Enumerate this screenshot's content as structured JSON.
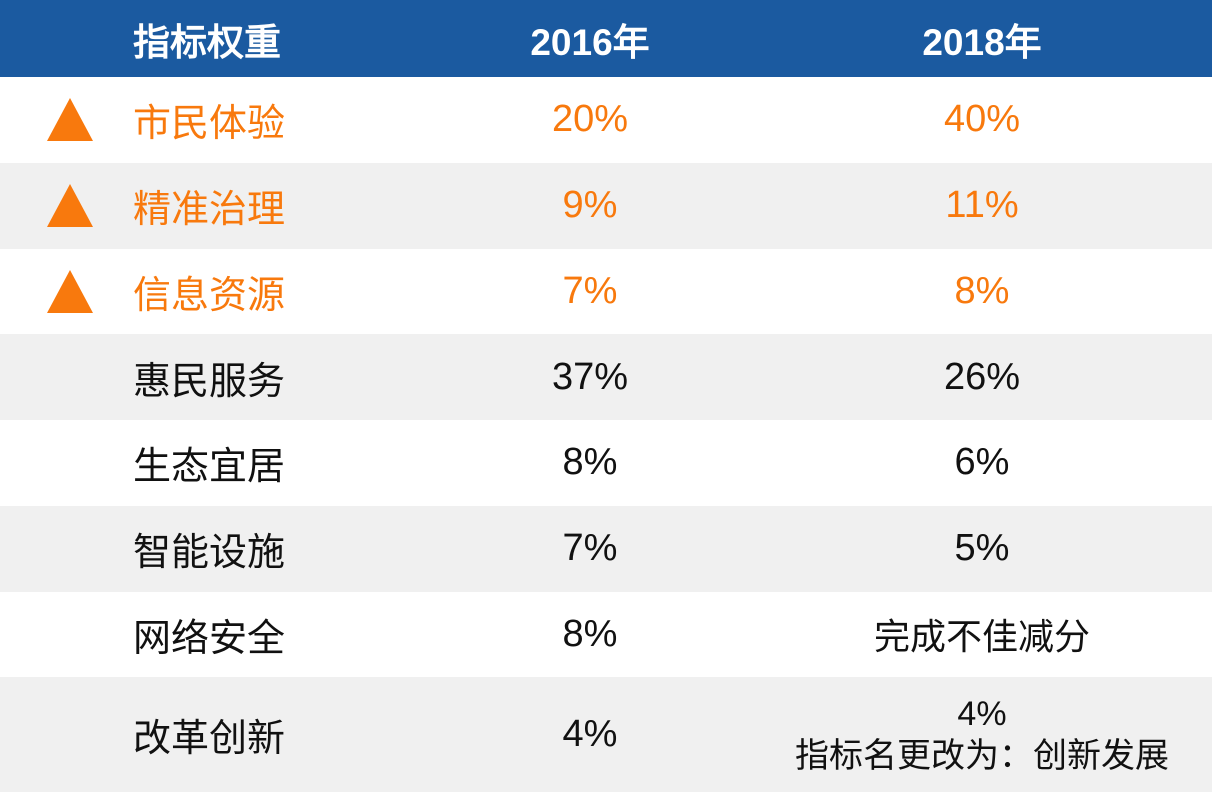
{
  "colors": {
    "header_bg": "#1B5AA0",
    "header_text": "#FFFFFF",
    "accent_orange": "#F8790D",
    "row_alt_bg": "#F0F0F0",
    "body_text": "#111111"
  },
  "table": {
    "header": {
      "indicator": "指标权重",
      "y2016": "2016年",
      "y2018": "2018年"
    },
    "rows": [
      {
        "name": "市民体验",
        "y2016": "20%",
        "y2018": "40%",
        "trend": "up"
      },
      {
        "name": "精准治理",
        "y2016": "9%",
        "y2018": "11%",
        "trend": "up"
      },
      {
        "name": "信息资源",
        "y2016": "7%",
        "y2018": "8%",
        "trend": "up"
      },
      {
        "name": "惠民服务",
        "y2016": "37%",
        "y2018": "26%"
      },
      {
        "name": "生态宜居",
        "y2016": "8%",
        "y2018": "6%"
      },
      {
        "name": "智能设施",
        "y2016": "7%",
        "y2018": "5%"
      },
      {
        "name": "网络安全",
        "y2016": "8%",
        "y2018": "完成不佳减分"
      },
      {
        "name": "改革创新",
        "y2016": "4%",
        "y2018": "4%",
        "y2018_note": "指标名更改为：创新发展"
      }
    ]
  },
  "chart_data": {
    "type": "table",
    "title": "指标权重",
    "categories": [
      "市民体验",
      "精准治理",
      "信息资源",
      "惠民服务",
      "生态宜居",
      "智能设施",
      "网络安全",
      "改革创新"
    ],
    "series": [
      {
        "name": "2016年",
        "values": [
          "20%",
          "9%",
          "7%",
          "37%",
          "8%",
          "7%",
          "8%",
          "4%"
        ]
      },
      {
        "name": "2018年",
        "values": [
          "40%",
          "11%",
          "8%",
          "26%",
          "6%",
          "5%",
          "完成不佳减分",
          "4% 指标名更改为：创新发展"
        ]
      }
    ],
    "annotations": {
      "increased_weight_rows": [
        "市民体验",
        "精准治理",
        "信息资源"
      ],
      "row7_2018_note": "完成不佳减分",
      "row8_2018_note": "指标名更改为：创新发展"
    },
    "legend_position": "top-header",
    "grid": false
  }
}
